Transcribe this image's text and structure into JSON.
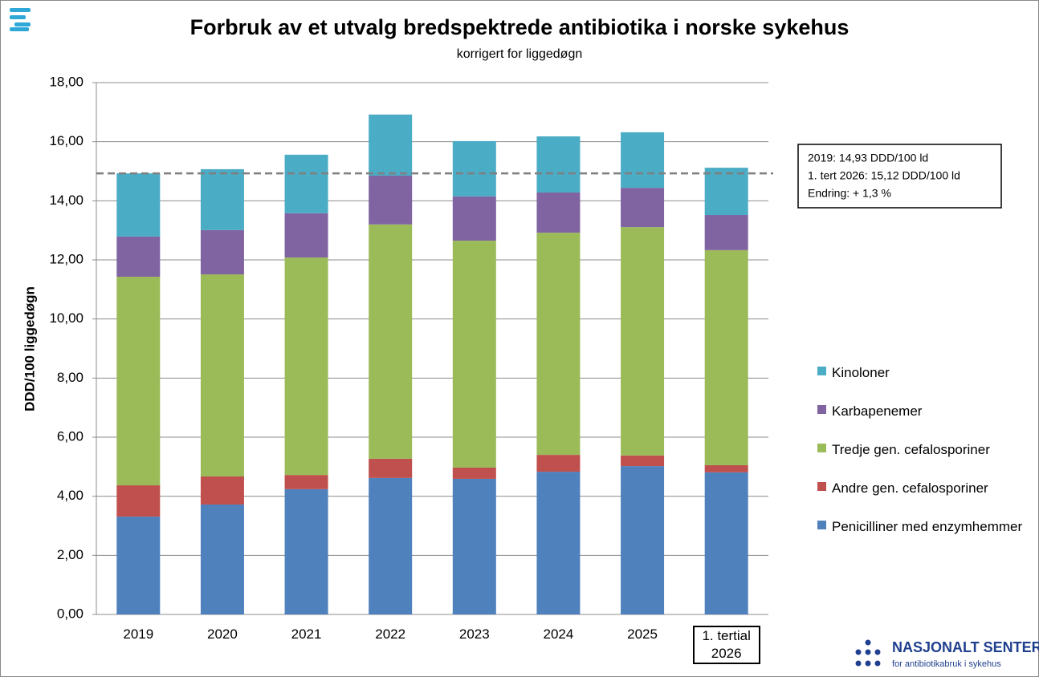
{
  "chart_data": {
    "type": "stacked_bar",
    "title": "Forbruk av et utvalg bredspektrede antibiotika i norske sykehus",
    "subtitle": "korrigert for liggedøgn",
    "y_label": "DDD/100 liggedøgn",
    "categories": [
      "2019",
      "2020",
      "2021",
      "2022",
      "2023",
      "2024",
      "2025",
      "1. tertial 2026"
    ],
    "series": [
      {
        "name": "Penicilliner med enzymhemmer",
        "color": "#4f81bd",
        "values": [
          3.31,
          3.72,
          4.24,
          4.62,
          4.59,
          4.83,
          5.02,
          4.81
        ]
      },
      {
        "name": "Andre gen. cefalosporiner",
        "color": "#c0504d",
        "values": [
          1.06,
          0.95,
          0.48,
          0.65,
          0.38,
          0.57,
          0.36,
          0.24
        ]
      },
      {
        "name": "Tredje gen. cefalosporiner",
        "color": "#9bbb59",
        "values": [
          7.06,
          6.84,
          7.36,
          7.93,
          7.68,
          7.52,
          7.73,
          7.28
        ]
      },
      {
        "name": "Karbapenemer",
        "color": "#8064a2",
        "values": [
          1.36,
          1.5,
          1.5,
          1.65,
          1.5,
          1.36,
          1.33,
          1.19
        ]
      },
      {
        "name": "Kinoloner",
        "color": "#4bacc6",
        "values": [
          2.14,
          2.06,
          1.98,
          2.07,
          1.87,
          1.9,
          1.88,
          1.6
        ]
      }
    ],
    "ylim": [
      0,
      18
    ],
    "yticks": [
      {
        "value": 0,
        "label": "0,00"
      },
      {
        "value": 2,
        "label": "2,00"
      },
      {
        "value": 4,
        "label": "4,00"
      },
      {
        "value": 6,
        "label": "6,00"
      },
      {
        "value": 8,
        "label": "8,00"
      },
      {
        "value": 10,
        "label": "10,00"
      },
      {
        "value": 12,
        "label": "12,00"
      },
      {
        "value": 14,
        "label": "14,00"
      },
      {
        "value": 16,
        "label": "16,00"
      },
      {
        "value": 18,
        "label": "18,00"
      }
    ],
    "grid": true,
    "legend": "right",
    "reference_line": 14.93,
    "annotation": [
      "2019: 14,93 DDD/100 ld",
      "1. tert 2026: 15,12 DDD/100 ld",
      "Endring: + 1,3 %"
    ]
  },
  "logo": {
    "name": "NASJONALT SENTER",
    "tagline": "for antibiotikabruk i sykehus"
  }
}
